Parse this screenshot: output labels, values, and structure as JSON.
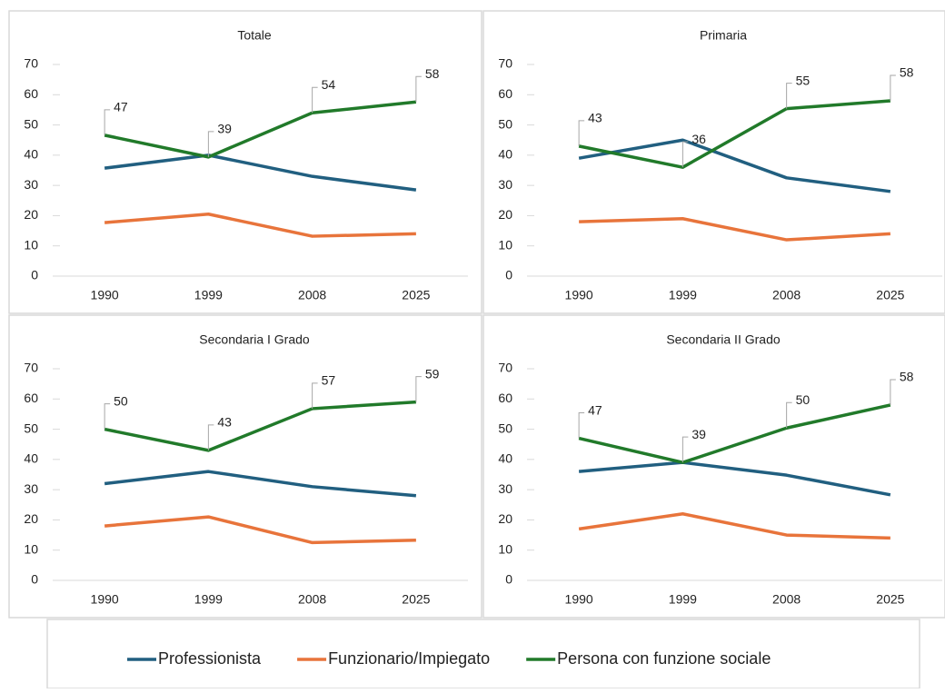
{
  "chart_data": [
    {
      "type": "line",
      "title": "Totale",
      "categories": [
        "1990",
        "1999",
        "2008",
        "2025"
      ],
      "ylim": [
        0,
        70
      ],
      "yticks": [
        0,
        10,
        20,
        30,
        40,
        50,
        60,
        70
      ],
      "grid": false,
      "legend": "bottom",
      "series": [
        {
          "name": "Professionista",
          "color": "#215f80",
          "values": [
            35.7,
            40,
            33,
            28.5
          ]
        },
        {
          "name": "Funzionario/Impiegato",
          "color": "#e8743b",
          "values": [
            17.7,
            20.5,
            13.2,
            14
          ]
        },
        {
          "name": "Persona con funzione sociale",
          "color": "#217a2a",
          "values": [
            46.6,
            39.4,
            54,
            57.6
          ],
          "value_labels": [
            "47",
            "39",
            "54",
            "58"
          ]
        }
      ]
    },
    {
      "type": "line",
      "title": "Primaria",
      "categories": [
        "1990",
        "1999",
        "2008",
        "2025"
      ],
      "ylim": [
        0,
        70
      ],
      "yticks": [
        0,
        10,
        20,
        30,
        40,
        50,
        60,
        70
      ],
      "grid": false,
      "series": [
        {
          "name": "Professionista",
          "color": "#215f80",
          "values": [
            39,
            45,
            32.5,
            28
          ]
        },
        {
          "name": "Funzionario/Impiegato",
          "color": "#e8743b",
          "values": [
            18,
            19,
            12,
            14
          ]
        },
        {
          "name": "Persona con funzione sociale",
          "color": "#217a2a",
          "values": [
            43,
            36,
            55.4,
            58
          ],
          "value_labels": [
            "43",
            "36",
            "55",
            "58"
          ]
        }
      ]
    },
    {
      "type": "line",
      "title": "Secondaria I Grado",
      "categories": [
        "1990",
        "1999",
        "2008",
        "2025"
      ],
      "ylim": [
        0,
        70
      ],
      "yticks": [
        0,
        10,
        20,
        30,
        40,
        50,
        60,
        70
      ],
      "grid": false,
      "series": [
        {
          "name": "Professionista",
          "color": "#215f80",
          "values": [
            32,
            36,
            31,
            28
          ]
        },
        {
          "name": "Funzionario/Impiegato",
          "color": "#e8743b",
          "values": [
            18,
            21,
            12.5,
            13.3
          ]
        },
        {
          "name": "Persona con funzione sociale",
          "color": "#217a2a",
          "values": [
            50,
            43,
            56.8,
            59
          ],
          "value_labels": [
            "50",
            "43",
            "57",
            "59"
          ]
        }
      ]
    },
    {
      "type": "line",
      "title": "Secondaria II Grado",
      "categories": [
        "1990",
        "1999",
        "2008",
        "2025"
      ],
      "ylim": [
        0,
        70
      ],
      "yticks": [
        0,
        10,
        20,
        30,
        40,
        50,
        60,
        70
      ],
      "grid": false,
      "series": [
        {
          "name": "Professionista",
          "color": "#215f80",
          "values": [
            36,
            39,
            34.8,
            28.3
          ]
        },
        {
          "name": "Funzionario/Impiegato",
          "color": "#e8743b",
          "values": [
            17,
            22,
            15,
            14
          ]
        },
        {
          "name": "Persona con funzione sociale",
          "color": "#217a2a",
          "values": [
            47,
            39,
            50.4,
            58
          ],
          "value_labels": [
            "47",
            "39",
            "50",
            "58"
          ]
        }
      ]
    }
  ]
}
